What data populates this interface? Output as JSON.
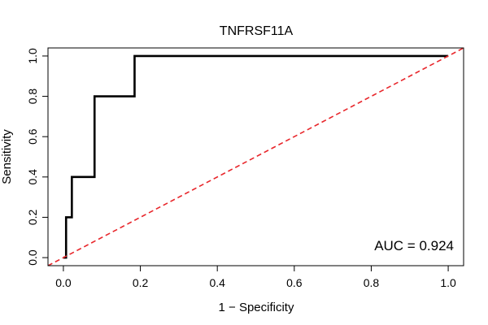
{
  "chart_data": {
    "type": "line",
    "title": "TNFRSF11A",
    "xlabel": "1 − Specificity",
    "ylabel": "Sensitivity",
    "xlim": [
      -0.04,
      1.04
    ],
    "ylim": [
      -0.04,
      1.04
    ],
    "x_ticks": [
      0.0,
      0.2,
      0.4,
      0.6,
      0.8,
      1.0
    ],
    "x_tick_labels": [
      "0.0",
      "0.2",
      "0.4",
      "0.6",
      "0.8",
      "1.0"
    ],
    "y_ticks": [
      0.0,
      0.2,
      0.4,
      0.6,
      0.8,
      1.0
    ],
    "y_tick_labels": [
      "0.0",
      "0.2",
      "0.4",
      "0.6",
      "0.8",
      "1.0"
    ],
    "series": [
      {
        "name": "ROC curve",
        "color": "#000000",
        "style": "solid",
        "x": [
          0.0,
          0.007,
          0.007,
          0.015,
          0.015,
          0.022,
          0.022,
          0.074,
          0.074,
          0.081,
          0.081,
          0.185,
          0.185,
          1.0
        ],
        "y": [
          0.0,
          0.0,
          0.2,
          0.2,
          0.2,
          0.2,
          0.4,
          0.4,
          0.4,
          0.4,
          0.8,
          0.8,
          1.0,
          1.0
        ]
      },
      {
        "name": "Reference diagonal",
        "color": "#e8262b",
        "style": "dashed",
        "x": [
          -0.04,
          1.04
        ],
        "y": [
          -0.04,
          1.04
        ]
      }
    ],
    "annotation": "AUC = 0.924"
  }
}
